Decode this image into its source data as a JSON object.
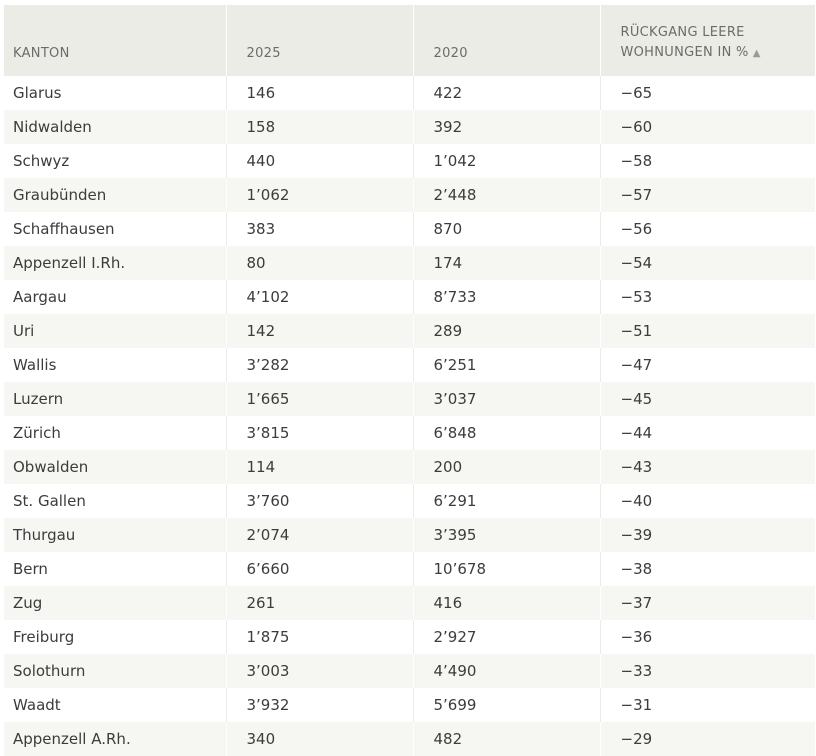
{
  "chart_data": {
    "type": "table",
    "columns": [
      "KANTON",
      "2025",
      "2020",
      "RÜCKGANG LEERE WOHNUNGEN IN %"
    ],
    "sorted_column": "RÜCKGANG LEERE WOHNUNGEN IN %",
    "sort_direction": "ascending",
    "rows": [
      [
        "Glarus",
        "146",
        "422",
        "−65"
      ],
      [
        "Nidwalden",
        "158",
        "392",
        "−60"
      ],
      [
        "Schwyz",
        "440",
        "1’042",
        "−58"
      ],
      [
        "Graubünden",
        "1’062",
        "2’448",
        "−57"
      ],
      [
        "Schaffhausen",
        "383",
        "870",
        "−56"
      ],
      [
        "Appenzell I.Rh.",
        "80",
        "174",
        "−54"
      ],
      [
        "Aargau",
        "4’102",
        "8’733",
        "−53"
      ],
      [
        "Uri",
        "142",
        "289",
        "−51"
      ],
      [
        "Wallis",
        "3’282",
        "6’251",
        "−47"
      ],
      [
        "Luzern",
        "1’665",
        "3’037",
        "−45"
      ],
      [
        "Zürich",
        "3’815",
        "6’848",
        "−44"
      ],
      [
        "Obwalden",
        "114",
        "200",
        "−43"
      ],
      [
        "St. Gallen",
        "3’760",
        "6’291",
        "−40"
      ],
      [
        "Thurgau",
        "2’074",
        "3’395",
        "−39"
      ],
      [
        "Bern",
        "6’660",
        "10’678",
        "−38"
      ],
      [
        "Zug",
        "261",
        "416",
        "−37"
      ],
      [
        "Freiburg",
        "1’875",
        "2’927",
        "−36"
      ],
      [
        "Solothurn",
        "3’003",
        "4’490",
        "−33"
      ],
      [
        "Waadt",
        "3’932",
        "5’699",
        "−31"
      ],
      [
        "Appenzell A.Rh.",
        "340",
        "482",
        "−29"
      ]
    ]
  },
  "header": {
    "col1": "KANTON",
    "col2": "2025",
    "col3": "2020",
    "col4_line1": "RÜCKGANG LEERE",
    "col4_line2": "WOHNUNGEN IN %",
    "sort_icon": "▲",
    "sort_icon_name": "sort-ascending-icon"
  },
  "colors": {
    "header_bg": "#ecece7",
    "header_text": "#6b6b6b",
    "row_alt_bg": "#f6f6f3",
    "body_text": "#3c3c3c"
  }
}
